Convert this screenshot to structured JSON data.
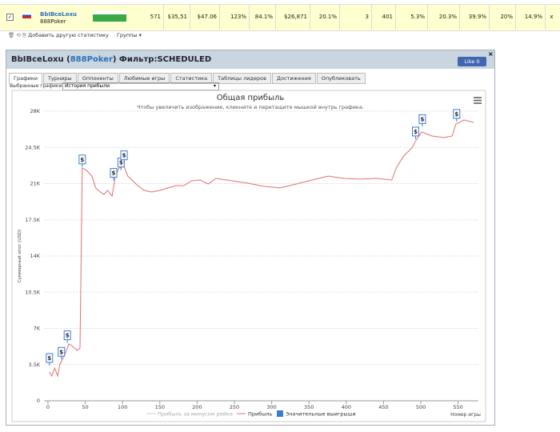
{
  "table_row": {
    "cells": [
      "BbIBceLoxu",
      "888Poker",
      "571",
      "$35,51",
      "$47.06",
      "123%",
      "84.1%",
      "$26,871",
      "20.1%",
      "3",
      "401",
      "5.3%",
      "20.3%",
      "39.9%",
      "20%",
      "14.9%",
      "x"
    ]
  },
  "toolbar": {
    "add_stat": "Добавить другую статистику",
    "groups": "Группы"
  },
  "panel": {
    "title_prefix": "BbIBceLoxu (",
    "site": "888Poker",
    "title_suffix": ") Фильтр:SCHEDULED",
    "like": "Like 0",
    "tabs": [
      "Графики",
      "Турниры",
      "Оппоненты",
      "Любимые игры",
      "Статистика",
      "Таблицы лидеров",
      "Достижения",
      "Опубликовать"
    ],
    "selected_label": "Выбранные графики:",
    "selected_value": "История прибыли"
  },
  "chart_data": {
    "type": "line",
    "title": "Общая прибыль",
    "subtitle": "Чтобы увеличить изображение, кликните и перетащите мышкой внутрь графика.",
    "y_label": "Суммарный итог (USD)",
    "x_label": "Номер игры",
    "xlim": [
      -5,
      577
    ],
    "xticks": [
      0,
      50,
      100,
      150,
      200,
      250,
      300,
      350,
      400,
      450,
      500,
      550
    ],
    "ylim": [
      0,
      28000
    ],
    "yticks": [
      0,
      {
        "value": 3500,
        "label": "3.5K"
      },
      {
        "value": 7000,
        "label": "7K"
      },
      {
        "value": 10500,
        "label": "10.5K"
      },
      {
        "value": 14000,
        "label": "14K"
      },
      {
        "value": 17500,
        "label": "17.5K"
      },
      {
        "value": 21000,
        "label": "21K"
      },
      {
        "value": 24500,
        "label": "24.5K"
      },
      {
        "value": 28000,
        "label": "28K"
      }
    ],
    "grid": true,
    "extra_legend": {
      "name": "Прибыль за минусом рейка",
      "color": "#cccccc"
    },
    "series": [
      {
        "name": "Прибыль",
        "color": "#e07070",
        "x": [
          2,
          5,
          9,
          13,
          16,
          19,
          24,
          28,
          32,
          39,
          43,
          46,
          52,
          59,
          64,
          70,
          75,
          80,
          86,
          90,
          95,
          102,
          107,
          118,
          129,
          139,
          150,
          161,
          172,
          182,
          193,
          204,
          215,
          225,
          247,
          268,
          290,
          311,
          333,
          354,
          376,
          397,
          418,
          440,
          461,
          467,
          477,
          488,
          494,
          501,
          515,
          531,
          542,
          547,
          558,
          571
        ],
        "values": [
          2785,
          2400,
          3170,
          2400,
          3560,
          3950,
          4720,
          5490,
          5340,
          4870,
          5100,
          22500,
          22280,
          21700,
          20580,
          20190,
          19950,
          20340,
          19800,
          21580,
          22500,
          22660,
          21730,
          20960,
          20340,
          20190,
          20340,
          20580,
          20810,
          20810,
          21270,
          21350,
          20960,
          21500,
          21270,
          21040,
          20730,
          20580,
          20960,
          21350,
          21730,
          21500,
          21430,
          21500,
          21350,
          22510,
          23670,
          24440,
          25220,
          25990,
          25600,
          25450,
          25600,
          26760,
          27150,
          26920
        ]
      },
      {
        "name": "Значительные выигрыши",
        "color": "#3a7bd5",
        "marker_label": "$",
        "x": [
          2,
          18,
          26,
          46,
          88,
          98,
          102,
          493,
          502,
          548
        ],
        "values": [
          3400,
          4000,
          5600,
          22600,
          21300,
          22300,
          23000,
          25300,
          26500,
          27000
        ]
      }
    ]
  }
}
